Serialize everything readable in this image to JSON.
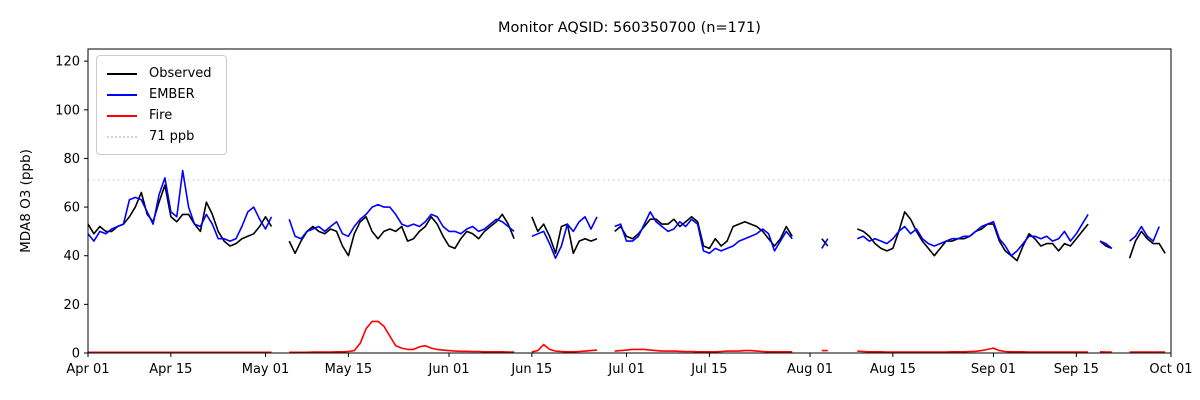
{
  "chart_data": {
    "type": "line",
    "title": "Monitor AQSID: 560350700 (n=171)",
    "ylabel": "MDA8 O3 (ppb)",
    "xlabel": "",
    "ylim": [
      0,
      125
    ],
    "yticks": [
      0,
      20,
      40,
      60,
      80,
      100,
      120
    ],
    "x_axis_unit": "day",
    "x_total_days": 183,
    "xticks": [
      {
        "label": "Apr 01",
        "day": 0
      },
      {
        "label": "Apr 15",
        "day": 14
      },
      {
        "label": "May 01",
        "day": 30
      },
      {
        "label": "May 15",
        "day": 44
      },
      {
        "label": "Jun 01",
        "day": 61
      },
      {
        "label": "Jun 15",
        "day": 75
      },
      {
        "label": "Jul 01",
        "day": 91
      },
      {
        "label": "Jul 15",
        "day": 105
      },
      {
        "label": "Aug 01",
        "day": 122
      },
      {
        "label": "Aug 15",
        "day": 136
      },
      {
        "label": "Sep 01",
        "day": 153
      },
      {
        "label": "Sep 15",
        "day": 167
      },
      {
        "label": "Oct 01",
        "day": 183
      }
    ],
    "reference_line": {
      "value": 71,
      "label": "71 ppb",
      "color": "#d3d3d3",
      "style": "dotted"
    },
    "legend": [
      {
        "label": "Observed",
        "color": "#000000",
        "style": "solid"
      },
      {
        "label": "EMBER",
        "color": "#0000ff",
        "style": "solid"
      },
      {
        "label": "Fire",
        "color": "#ff0000",
        "style": "solid"
      },
      {
        "label": "71 ppb",
        "color": "#d3d3d3",
        "style": "dotted"
      }
    ],
    "legend_position": "upper-left",
    "grid": false,
    "series": [
      {
        "name": "Observed",
        "color": "#000000",
        "values": [
          53,
          49,
          52,
          50,
          50,
          52,
          53,
          56,
          60,
          66,
          57,
          54,
          62,
          69,
          56,
          54,
          57,
          57,
          53,
          50,
          62,
          57,
          50,
          46,
          44,
          45,
          47,
          48,
          49,
          52,
          56,
          52,
          null,
          null,
          46,
          41,
          46,
          50,
          52,
          50,
          49,
          51,
          50,
          44,
          40,
          49,
          54,
          56,
          50,
          47,
          50,
          51,
          50,
          52,
          46,
          47,
          50,
          52,
          56,
          53,
          48,
          44,
          43,
          47,
          50,
          49,
          47,
          50,
          52,
          54,
          57,
          53,
          47,
          null,
          null,
          56,
          50,
          53,
          48,
          41,
          52,
          53,
          41,
          46,
          47,
          46,
          47,
          null,
          null,
          50,
          52,
          48,
          47,
          49,
          52,
          55,
          55,
          53,
          53,
          55,
          52,
          54,
          56,
          54,
          44,
          43,
          47,
          44,
          46,
          52,
          53,
          54,
          53,
          52,
          50,
          47,
          44,
          47,
          52,
          48,
          null,
          null,
          null,
          null,
          47,
          44,
          null,
          null,
          null,
          null,
          51,
          50,
          48,
          45,
          43,
          42,
          43,
          50,
          58,
          55,
          50,
          46,
          43,
          40,
          43,
          46,
          46,
          47,
          47,
          48,
          50,
          51,
          53,
          53,
          46,
          42,
          40,
          38,
          44,
          49,
          47,
          44,
          45,
          45,
          42,
          45,
          44,
          47,
          50,
          53,
          null,
          46,
          44,
          43,
          null,
          null,
          39,
          46,
          50,
          47,
          45,
          45,
          41
        ]
      },
      {
        "name": "EMBER",
        "color": "#0000ff",
        "values": [
          49,
          46,
          50,
          49,
          51,
          52,
          53,
          63,
          64,
          63,
          58,
          53,
          65,
          72,
          58,
          56,
          75,
          60,
          53,
          52,
          57,
          53,
          47,
          47,
          46,
          47,
          52,
          58,
          60,
          55,
          51,
          56,
          null,
          null,
          55,
          48,
          47,
          50,
          51,
          52,
          50,
          52,
          54,
          49,
          48,
          52,
          55,
          57,
          60,
          61,
          60,
          60,
          57,
          53,
          52,
          53,
          52,
          54,
          57,
          56,
          52,
          50,
          50,
          49,
          51,
          52,
          50,
          51,
          53,
          55,
          54,
          52,
          50,
          null,
          null,
          48,
          49,
          50,
          45,
          39,
          44,
          53,
          50,
          54,
          56,
          51,
          56,
          null,
          null,
          52,
          53,
          46,
          46,
          48,
          53,
          58,
          54,
          52,
          50,
          51,
          54,
          52,
          55,
          53,
          42,
          41,
          43,
          42,
          43,
          44,
          46,
          47,
          48,
          49,
          51,
          49,
          42,
          46,
          50,
          47,
          null,
          null,
          null,
          null,
          43,
          47,
          null,
          null,
          null,
          null,
          47,
          48,
          46,
          47,
          46,
          45,
          47,
          50,
          52,
          49,
          51,
          47,
          45,
          44,
          45,
          46,
          47,
          47,
          48,
          48,
          50,
          52,
          53,
          54,
          47,
          44,
          40,
          42,
          45,
          48,
          48,
          47,
          48,
          46,
          47,
          50,
          46,
          49,
          53,
          57,
          null,
          46,
          45,
          43,
          null,
          null,
          46,
          48,
          52,
          48,
          46,
          52,
          null
        ]
      },
      {
        "name": "Fire",
        "color": "#ff0000",
        "values": [
          0.3,
          0.3,
          0.3,
          0.3,
          0.3,
          0.3,
          0.3,
          0.3,
          0.3,
          0.3,
          0.3,
          0.3,
          0.3,
          0.3,
          0.3,
          0.3,
          0.3,
          0.3,
          0.3,
          0.3,
          0.3,
          0.3,
          0.3,
          0.3,
          0.3,
          0.3,
          0.3,
          0.3,
          0.3,
          0.3,
          0.3,
          0.3,
          null,
          null,
          0.3,
          0.3,
          0.3,
          0.3,
          0.4,
          0.4,
          0.4,
          0.4,
          0.5,
          0.5,
          0.6,
          1,
          4,
          10,
          13,
          13,
          11,
          7,
          3,
          2,
          1.5,
          1.5,
          2.5,
          3,
          2,
          1.5,
          1.2,
          1,
          0.8,
          0.7,
          0.7,
          0.6,
          0.6,
          0.5,
          0.5,
          0.5,
          0.5,
          0.4,
          0.4,
          null,
          null,
          0.5,
          1,
          3.5,
          1.5,
          0.8,
          0.6,
          0.5,
          0.5,
          0.6,
          0.8,
          1,
          1.2,
          null,
          null,
          0.8,
          1,
          1.2,
          1.5,
          1.5,
          1.5,
          1.2,
          1,
          0.8,
          0.8,
          0.8,
          0.7,
          0.6,
          0.6,
          0.5,
          0.5,
          0.5,
          0.5,
          0.6,
          0.8,
          0.8,
          0.8,
          1,
          1,
          0.8,
          0.6,
          0.5,
          0.5,
          0.5,
          0.5,
          0.5,
          null,
          null,
          null,
          null,
          1,
          1,
          null,
          null,
          null,
          null,
          0.8,
          0.6,
          0.5,
          0.5,
          0.5,
          0.4,
          0.4,
          0.4,
          0.4,
          0.4,
          0.4,
          0.4,
          0.4,
          0.4,
          0.4,
          0.4,
          0.5,
          0.5,
          0.5,
          0.6,
          0.7,
          1,
          1.5,
          2,
          1,
          0.6,
          0.5,
          0.5,
          0.5,
          0.4,
          0.4,
          0.4,
          0.4,
          0.4,
          0.4,
          0.4,
          0.4,
          0.4,
          0.4,
          0.4,
          null,
          0.5,
          0.4,
          0.4,
          null,
          null,
          0.4,
          0.4,
          0.4,
          0.4,
          0.4,
          0.4,
          0.4
        ]
      }
    ]
  }
}
